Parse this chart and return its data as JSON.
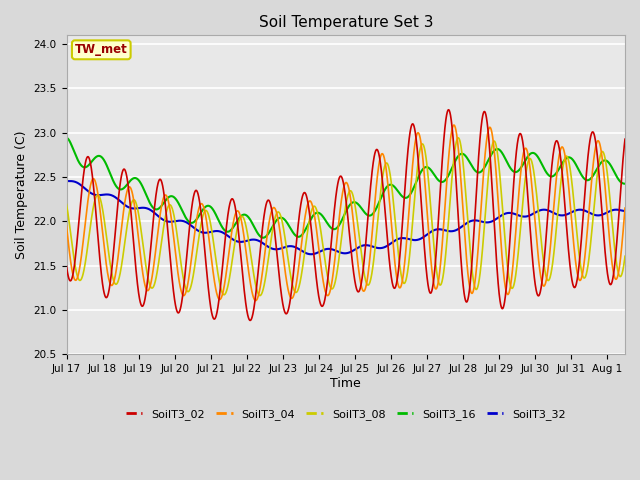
{
  "title": "Soil Temperature Set 3",
  "xlabel": "Time",
  "ylabel": "Soil Temperature (C)",
  "ylim": [
    20.5,
    24.1
  ],
  "xlim_days": [
    0,
    15.5
  ],
  "tick_labels": [
    "Jul 17",
    "Jul 18",
    "Jul 19",
    "Jul 20",
    "Jul 21",
    "Jul 22",
    "Jul 23",
    "Jul 24",
    "Jul 25",
    "Jul 26",
    "Jul 27",
    "Jul 28",
    "Jul 29",
    "Jul 30",
    "Jul 31",
    "Aug 1"
  ],
  "yticks": [
    20.5,
    21.0,
    21.5,
    22.0,
    22.5,
    23.0,
    23.5,
    24.0
  ],
  "annotation_text": "TW_met",
  "annotation_color": "#990000",
  "annotation_bg": "#ffffcc",
  "annotation_border": "#cccc00",
  "series_colors": {
    "SoilT3_02": "#cc0000",
    "SoilT3_04": "#ff8800",
    "SoilT3_08": "#cccc00",
    "SoilT3_16": "#00bb00",
    "SoilT3_32": "#0000cc"
  },
  "fig_bg": "#d9d9d9",
  "plot_bg": "#e8e8e8",
  "grid_color": "#ffffff"
}
